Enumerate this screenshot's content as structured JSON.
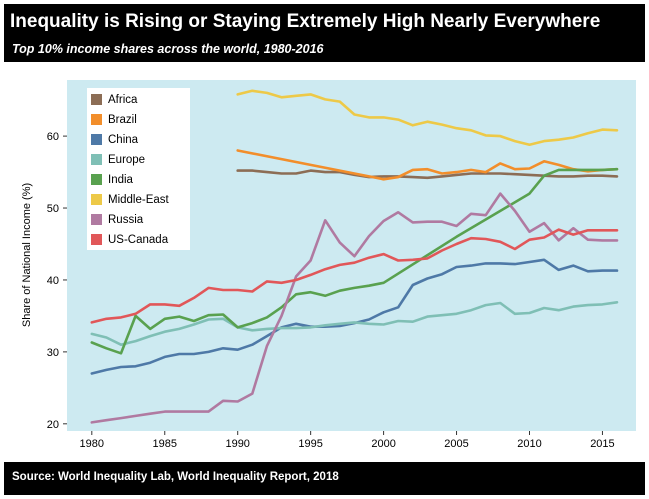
{
  "header": {
    "title": "Inequality is Rising or Staying Extremely High Nearly Everywhere",
    "subtitle": "Top 10% income shares across the world, 1980-2016"
  },
  "footer": {
    "source": "Source: World Inequality Lab, World Inequality Report, 2018"
  },
  "chart_data": {
    "type": "line",
    "title": "",
    "xlabel": "",
    "ylabel": "Share of National Income (%)",
    "xlim": [
      1978.3,
      2017.3
    ],
    "ylim": [
      19,
      67.8
    ],
    "xticks": [
      1980,
      1985,
      1990,
      1995,
      2000,
      2005,
      2010,
      2015
    ],
    "yticks": [
      20,
      30,
      40,
      50,
      60
    ],
    "grid": false,
    "legend_position": "top-left",
    "series": [
      {
        "name": "Africa",
        "color": "#8c6d55",
        "points": [
          [
            1990,
            55.2
          ],
          [
            1991,
            55.2
          ],
          [
            1992,
            55.0
          ],
          [
            1993,
            54.8
          ],
          [
            1994,
            54.8
          ],
          [
            1995,
            55.2
          ],
          [
            1996,
            55.0
          ],
          [
            1997,
            55.0
          ],
          [
            1998,
            54.6
          ],
          [
            1999,
            54.3
          ],
          [
            2000,
            54.4
          ],
          [
            2001,
            54.4
          ],
          [
            2002,
            54.3
          ],
          [
            2003,
            54.2
          ],
          [
            2004,
            54.4
          ],
          [
            2005,
            54.6
          ],
          [
            2006,
            54.8
          ],
          [
            2007,
            54.8
          ],
          [
            2008,
            54.8
          ],
          [
            2009,
            54.7
          ],
          [
            2010,
            54.6
          ],
          [
            2011,
            54.5
          ],
          [
            2012,
            54.4
          ],
          [
            2013,
            54.4
          ],
          [
            2014,
            54.5
          ],
          [
            2015,
            54.5
          ],
          [
            2016,
            54.4
          ]
        ]
      },
      {
        "name": "Brazil",
        "color": "#f28e2b",
        "points": [
          [
            1990,
            58.0
          ],
          [
            1995,
            56.0
          ],
          [
            2000,
            54.0
          ],
          [
            2001,
            54.3
          ],
          [
            2002,
            55.3
          ],
          [
            2003,
            55.4
          ],
          [
            2004,
            54.8
          ],
          [
            2005,
            55.0
          ],
          [
            2006,
            55.3
          ],
          [
            2007,
            55.0
          ],
          [
            2008,
            56.2
          ],
          [
            2009,
            55.4
          ],
          [
            2010,
            55.5
          ],
          [
            2011,
            56.5
          ],
          [
            2012,
            56.0
          ],
          [
            2013,
            55.4
          ],
          [
            2014,
            55.1
          ],
          [
            2015,
            55.3
          ],
          [
            2016,
            55.4
          ]
        ]
      },
      {
        "name": "China",
        "color": "#4e79a7",
        "points": [
          [
            1980,
            27.0
          ],
          [
            1981,
            27.5
          ],
          [
            1982,
            27.9
          ],
          [
            1983,
            28.0
          ],
          [
            1984,
            28.5
          ],
          [
            1985,
            29.3
          ],
          [
            1986,
            29.7
          ],
          [
            1987,
            29.7
          ],
          [
            1988,
            30.0
          ],
          [
            1989,
            30.5
          ],
          [
            1990,
            30.3
          ],
          [
            1991,
            31.0
          ],
          [
            1992,
            32.2
          ],
          [
            1993,
            33.4
          ],
          [
            1994,
            33.9
          ],
          [
            1995,
            33.5
          ],
          [
            1996,
            33.5
          ],
          [
            1997,
            33.6
          ],
          [
            1998,
            34.0
          ],
          [
            1999,
            34.5
          ],
          [
            2000,
            35.5
          ],
          [
            2001,
            36.2
          ],
          [
            2002,
            39.3
          ],
          [
            2003,
            40.2
          ],
          [
            2004,
            40.8
          ],
          [
            2005,
            41.8
          ],
          [
            2006,
            42.0
          ],
          [
            2007,
            42.3
          ],
          [
            2008,
            42.3
          ],
          [
            2009,
            42.2
          ],
          [
            2010,
            42.5
          ],
          [
            2011,
            42.8
          ],
          [
            2012,
            41.4
          ],
          [
            2013,
            42.0
          ],
          [
            2014,
            41.2
          ],
          [
            2015,
            41.3
          ],
          [
            2016,
            41.3
          ]
        ]
      },
      {
        "name": "Europe",
        "color": "#7fbfb5",
        "points": [
          [
            1980,
            32.5
          ],
          [
            1981,
            32.0
          ],
          [
            1982,
            31.0
          ],
          [
            1983,
            31.5
          ],
          [
            1984,
            32.2
          ],
          [
            1985,
            32.8
          ],
          [
            1986,
            33.2
          ],
          [
            1987,
            33.8
          ],
          [
            1988,
            34.5
          ],
          [
            1989,
            34.6
          ],
          [
            1990,
            33.4
          ],
          [
            1991,
            33.0
          ],
          [
            1992,
            33.2
          ],
          [
            1993,
            33.3
          ],
          [
            1994,
            33.3
          ],
          [
            1995,
            33.4
          ],
          [
            1996,
            33.7
          ],
          [
            1997,
            33.9
          ],
          [
            1998,
            34.1
          ],
          [
            1999,
            33.9
          ],
          [
            2000,
            33.8
          ],
          [
            2001,
            34.3
          ],
          [
            2002,
            34.2
          ],
          [
            2003,
            34.9
          ],
          [
            2004,
            35.1
          ],
          [
            2005,
            35.3
          ],
          [
            2006,
            35.8
          ],
          [
            2007,
            36.5
          ],
          [
            2008,
            36.8
          ],
          [
            2009,
            35.3
          ],
          [
            2010,
            35.4
          ],
          [
            2011,
            36.1
          ],
          [
            2012,
            35.8
          ],
          [
            2013,
            36.3
          ],
          [
            2014,
            36.5
          ],
          [
            2015,
            36.6
          ],
          [
            2016,
            36.9
          ]
        ]
      },
      {
        "name": "India",
        "color": "#59a14f",
        "points": [
          [
            1980,
            31.3
          ],
          [
            1981,
            30.5
          ],
          [
            1982,
            29.8
          ],
          [
            1983,
            35.0
          ],
          [
            1984,
            33.2
          ],
          [
            1985,
            34.6
          ],
          [
            1986,
            34.9
          ],
          [
            1987,
            34.3
          ],
          [
            1988,
            35.1
          ],
          [
            1989,
            35.2
          ],
          [
            1990,
            33.4
          ],
          [
            1991,
            34.0
          ],
          [
            1992,
            34.8
          ],
          [
            1993,
            36.2
          ],
          [
            1994,
            38.0
          ],
          [
            1995,
            38.3
          ],
          [
            1996,
            37.8
          ],
          [
            1997,
            38.5
          ],
          [
            1998,
            38.9
          ],
          [
            1999,
            39.2
          ],
          [
            2000,
            39.6
          ],
          [
            2005,
            46.0
          ],
          [
            2010,
            52.0
          ],
          [
            2011,
            54.5
          ],
          [
            2012,
            55.3
          ],
          [
            2013,
            55.3
          ],
          [
            2014,
            55.3
          ],
          [
            2015,
            55.3
          ],
          [
            2016,
            55.4
          ]
        ]
      },
      {
        "name": "Middle-East",
        "color": "#edc948",
        "points": [
          [
            1990,
            65.8
          ],
          [
            1991,
            66.3
          ],
          [
            1992,
            66.0
          ],
          [
            1993,
            65.4
          ],
          [
            1994,
            65.6
          ],
          [
            1995,
            65.8
          ],
          [
            1996,
            65.1
          ],
          [
            1997,
            64.8
          ],
          [
            1998,
            63.0
          ],
          [
            1999,
            62.6
          ],
          [
            2000,
            62.6
          ],
          [
            2001,
            62.3
          ],
          [
            2002,
            61.5
          ],
          [
            2003,
            62.0
          ],
          [
            2004,
            61.6
          ],
          [
            2005,
            61.1
          ],
          [
            2006,
            60.8
          ],
          [
            2007,
            60.1
          ],
          [
            2008,
            60.0
          ],
          [
            2009,
            59.3
          ],
          [
            2010,
            58.8
          ],
          [
            2011,
            59.3
          ],
          [
            2012,
            59.5
          ],
          [
            2013,
            59.8
          ],
          [
            2014,
            60.4
          ],
          [
            2015,
            60.9
          ],
          [
            2016,
            60.8
          ]
        ]
      },
      {
        "name": "Russia",
        "color": "#b07aa1",
        "points": [
          [
            1980,
            20.2
          ],
          [
            1981,
            20.5
          ],
          [
            1982,
            20.8
          ],
          [
            1983,
            21.1
          ],
          [
            1984,
            21.4
          ],
          [
            1985,
            21.7
          ],
          [
            1986,
            21.7
          ],
          [
            1987,
            21.7
          ],
          [
            1988,
            21.7
          ],
          [
            1989,
            23.2
          ],
          [
            1990,
            23.1
          ],
          [
            1991,
            24.2
          ],
          [
            1992,
            30.8
          ],
          [
            1993,
            35.0
          ],
          [
            1994,
            40.5
          ],
          [
            1995,
            42.7
          ],
          [
            1996,
            48.3
          ],
          [
            1997,
            45.2
          ],
          [
            1998,
            43.3
          ],
          [
            1999,
            46.1
          ],
          [
            2000,
            48.2
          ],
          [
            2001,
            49.4
          ],
          [
            2002,
            48.0
          ],
          [
            2003,
            48.1
          ],
          [
            2004,
            48.1
          ],
          [
            2005,
            47.5
          ],
          [
            2006,
            49.2
          ],
          [
            2007,
            49.0
          ],
          [
            2008,
            52.0
          ],
          [
            2009,
            49.6
          ],
          [
            2010,
            46.7
          ],
          [
            2011,
            47.9
          ],
          [
            2012,
            45.5
          ],
          [
            2013,
            47.2
          ],
          [
            2014,
            45.6
          ],
          [
            2015,
            45.5
          ],
          [
            2016,
            45.5
          ]
        ]
      },
      {
        "name": "US-Canada",
        "color": "#e15759",
        "points": [
          [
            1980,
            34.1
          ],
          [
            1981,
            34.6
          ],
          [
            1982,
            34.8
          ],
          [
            1983,
            35.3
          ],
          [
            1984,
            36.6
          ],
          [
            1985,
            36.6
          ],
          [
            1986,
            36.4
          ],
          [
            1987,
            37.5
          ],
          [
            1988,
            38.9
          ],
          [
            1989,
            38.6
          ],
          [
            1990,
            38.6
          ],
          [
            1991,
            38.4
          ],
          [
            1992,
            39.8
          ],
          [
            1993,
            39.6
          ],
          [
            1994,
            40.0
          ],
          [
            1995,
            40.7
          ],
          [
            1996,
            41.5
          ],
          [
            1997,
            42.1
          ],
          [
            1998,
            42.4
          ],
          [
            1999,
            43.1
          ],
          [
            2000,
            43.6
          ],
          [
            2001,
            42.7
          ],
          [
            2002,
            42.8
          ],
          [
            2003,
            43.0
          ],
          [
            2004,
            44.1
          ],
          [
            2005,
            45.0
          ],
          [
            2006,
            45.8
          ],
          [
            2007,
            45.7
          ],
          [
            2008,
            45.3
          ],
          [
            2009,
            44.3
          ],
          [
            2010,
            45.6
          ],
          [
            2011,
            45.9
          ],
          [
            2012,
            47.0
          ],
          [
            2013,
            46.3
          ],
          [
            2014,
            46.9
          ],
          [
            2015,
            46.9
          ],
          [
            2016,
            46.9
          ]
        ]
      }
    ]
  }
}
